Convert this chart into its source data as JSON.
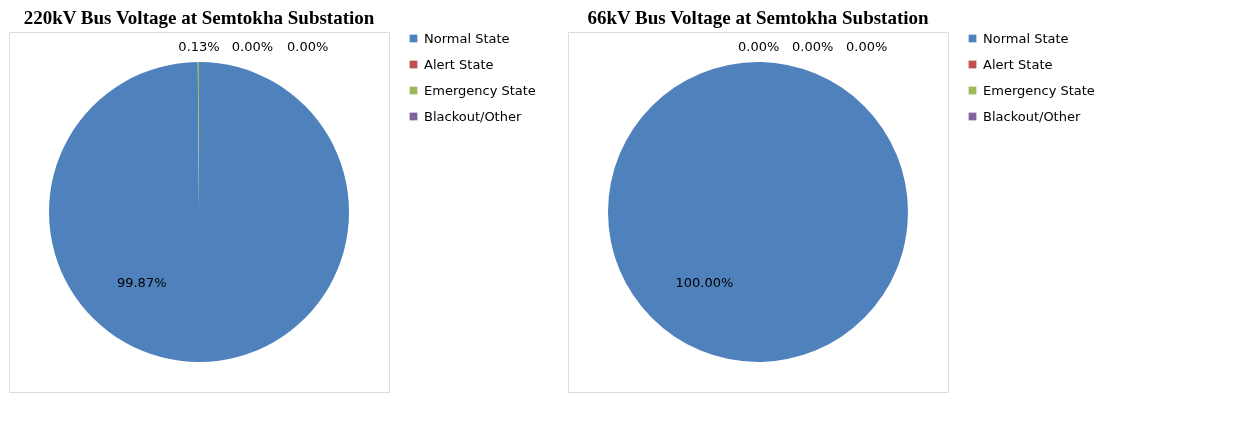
{
  "chart_data": [
    {
      "type": "pie",
      "title": "220kV Bus Voltage at Semtokha Substation",
      "categories": [
        "Normal State",
        "Alert State",
        "Emergency State",
        "Blackout/Other"
      ],
      "values": [
        99.87,
        0,
        0.13,
        0
      ],
      "colors": [
        "#4f81bd",
        "#c0504d",
        "#9bbb59",
        "#8064a2"
      ],
      "value_labels": [
        "99.87%",
        "0.00%",
        "0.13%",
        "0.00%"
      ],
      "legend": "right"
    },
    {
      "type": "pie",
      "title": "66kV Bus Voltage at Semtokha Substation",
      "categories": [
        "Normal State",
        "Alert State",
        "Emergency State",
        "Blackout/Other"
      ],
      "values": [
        100,
        0,
        0,
        0
      ],
      "colors": [
        "#4f81bd",
        "#c0504d",
        "#9bbb59",
        "#8064a2"
      ],
      "value_labels": [
        "100.00%",
        "0.00%",
        "0.00%",
        "0.00%"
      ],
      "legend": "right"
    }
  ]
}
